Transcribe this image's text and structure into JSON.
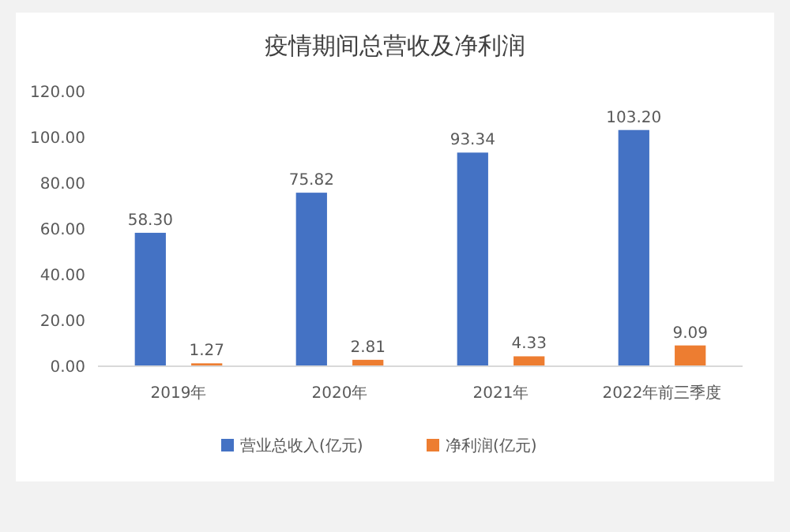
{
  "chart_data": {
    "type": "bar",
    "title": "疫情期间总营收及净利润",
    "categories": [
      "2019年",
      "2020年",
      "2021年",
      "2022年前三季度"
    ],
    "series": [
      {
        "name": "营业总收入(亿元)",
        "color": "#4472c4",
        "values": [
          58.3,
          75.82,
          93.34,
          103.2
        ],
        "value_labels": [
          "58.30",
          "75.82",
          "93.34",
          "103.20"
        ]
      },
      {
        "name": "净利润(亿元)",
        "color": "#ed7d31",
        "values": [
          1.27,
          2.81,
          4.33,
          9.09
        ],
        "value_labels": [
          "1.27",
          "2.81",
          "4.33",
          "9.09"
        ]
      }
    ],
    "ylim": [
      0,
      120
    ],
    "yticks": [
      {
        "value": 0,
        "label": "0.00"
      },
      {
        "value": 20,
        "label": "20.00"
      },
      {
        "value": 40,
        "label": "40.00"
      },
      {
        "value": 60,
        "label": "60.00"
      },
      {
        "value": 80,
        "label": "80.00"
      },
      {
        "value": 100,
        "label": "100.00"
      },
      {
        "value": 120,
        "label": "120.00"
      }
    ],
    "grid": false,
    "legend": "bottom"
  }
}
